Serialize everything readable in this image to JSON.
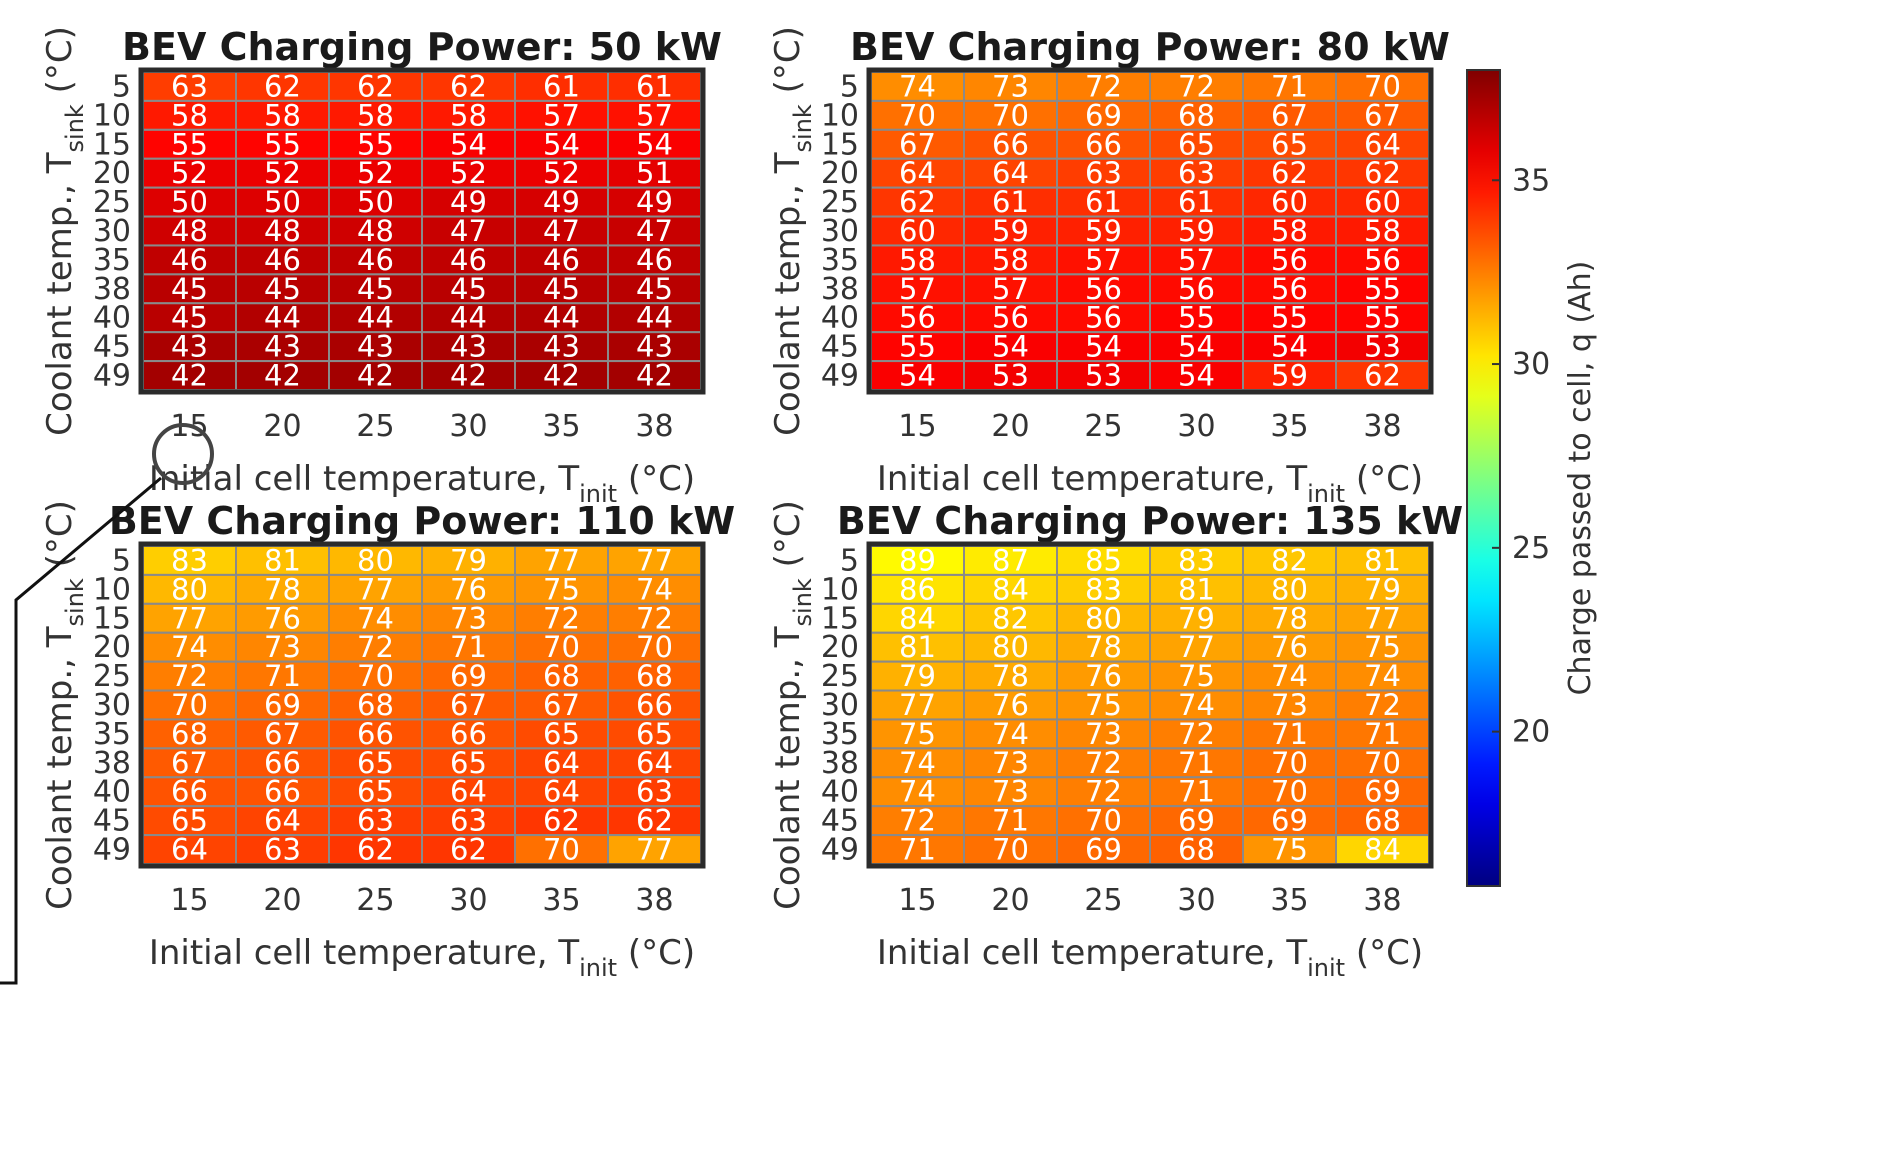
{
  "chart_data": {
    "type": "heatmap",
    "x_ticks": [
      "15",
      "20",
      "25",
      "30",
      "35",
      "38"
    ],
    "y_ticks": [
      "5",
      "10",
      "15",
      "20",
      "25",
      "30",
      "35",
      "38",
      "40",
      "45",
      "49"
    ],
    "xlabel_main": "Initial cell temperature, T",
    "xlabel_sub": "init",
    "xlabel_unit": " (°C)",
    "ylabel_main": "Coolant temp., T",
    "ylabel_sub": "sink",
    "ylabel_unit": " (°C)",
    "colorbar": {
      "label": "Charge passed to cell, q (Ah)",
      "ticks": [
        20,
        25,
        30,
        35
      ],
      "range": [
        15.8,
        38
      ],
      "colormap": "jet"
    },
    "panels": [
      {
        "title": "BEV Charging Power: 50 kW",
        "values": [
          [
            63,
            62,
            62,
            62,
            61,
            61
          ],
          [
            58,
            58,
            58,
            58,
            57,
            57
          ],
          [
            55,
            55,
            55,
            54,
            54,
            54
          ],
          [
            52,
            52,
            52,
            52,
            52,
            51
          ],
          [
            50,
            50,
            50,
            49,
            49,
            49
          ],
          [
            48,
            48,
            48,
            47,
            47,
            47
          ],
          [
            46,
            46,
            46,
            46,
            46,
            46
          ],
          [
            45,
            45,
            45,
            45,
            45,
            45
          ],
          [
            45,
            44,
            44,
            44,
            44,
            44
          ],
          [
            43,
            43,
            43,
            43,
            43,
            43
          ],
          [
            42,
            42,
            42,
            42,
            42,
            42
          ]
        ]
      },
      {
        "title": "BEV Charging Power: 80 kW",
        "values": [
          [
            74,
            73,
            72,
            72,
            71,
            70
          ],
          [
            70,
            70,
            69,
            68,
            67,
            67
          ],
          [
            67,
            66,
            66,
            65,
            65,
            64
          ],
          [
            64,
            64,
            63,
            63,
            62,
            62
          ],
          [
            62,
            61,
            61,
            61,
            60,
            60
          ],
          [
            60,
            59,
            59,
            59,
            58,
            58
          ],
          [
            58,
            58,
            57,
            57,
            56,
            56
          ],
          [
            57,
            57,
            56,
            56,
            56,
            55
          ],
          [
            56,
            56,
            56,
            55,
            55,
            55
          ],
          [
            55,
            54,
            54,
            54,
            54,
            53
          ],
          [
            54,
            53,
            53,
            54,
            59,
            62
          ]
        ]
      },
      {
        "title": "BEV Charging Power: 110 kW",
        "values": [
          [
            83,
            81,
            80,
            79,
            77,
            77
          ],
          [
            80,
            78,
            77,
            76,
            75,
            74
          ],
          [
            77,
            76,
            74,
            73,
            72,
            72
          ],
          [
            74,
            73,
            72,
            71,
            70,
            70
          ],
          [
            72,
            71,
            70,
            69,
            68,
            68
          ],
          [
            70,
            69,
            68,
            67,
            67,
            66
          ],
          [
            68,
            67,
            66,
            66,
            65,
            65
          ],
          [
            67,
            66,
            65,
            65,
            64,
            64
          ],
          [
            66,
            66,
            65,
            64,
            64,
            63
          ],
          [
            65,
            64,
            63,
            63,
            62,
            62
          ],
          [
            64,
            63,
            62,
            62,
            70,
            77
          ]
        ]
      },
      {
        "title": "BEV Charging Power: 135 kW",
        "values": [
          [
            89,
            87,
            85,
            83,
            82,
            81
          ],
          [
            86,
            84,
            83,
            81,
            80,
            79
          ],
          [
            84,
            82,
            80,
            79,
            78,
            77
          ],
          [
            81,
            80,
            78,
            77,
            76,
            75
          ],
          [
            79,
            78,
            76,
            75,
            74,
            74
          ],
          [
            77,
            76,
            75,
            74,
            73,
            72
          ],
          [
            75,
            74,
            73,
            72,
            71,
            71
          ],
          [
            74,
            73,
            72,
            71,
            70,
            70
          ],
          [
            74,
            73,
            72,
            71,
            70,
            69
          ],
          [
            72,
            71,
            70,
            69,
            69,
            68
          ],
          [
            71,
            70,
            69,
            68,
            75,
            84
          ]
        ]
      }
    ]
  }
}
